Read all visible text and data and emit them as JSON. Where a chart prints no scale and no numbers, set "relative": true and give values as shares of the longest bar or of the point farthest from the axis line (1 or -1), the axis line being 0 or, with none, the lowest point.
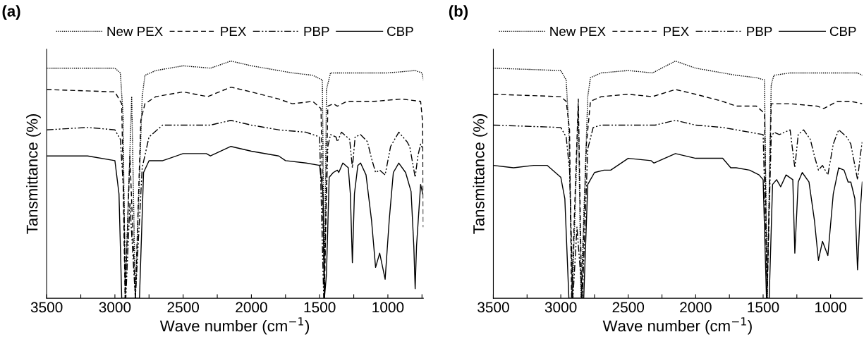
{
  "chart_data": [
    {
      "type": "line",
      "title": "(a)",
      "xlabel": "Wave number (cm$^{−1}$)",
      "ylabel": "Tansmittance (%)",
      "relative": true,
      "legend": "top",
      "xlim": [
        3500,
        740
      ],
      "xticks": [
        3500,
        {
          "value": 3250,
          "label": null
        },
        3000,
        {
          "value": 2750,
          "label": null
        },
        2500,
        {
          "value": 2250,
          "label": null
        },
        2000,
        {
          "value": 1750,
          "label": null
        },
        1500,
        {
          "value": 1250,
          "label": null
        },
        1000,
        {
          "value": 750,
          "label": null
        }
      ],
      "series": [
        {
          "name": "New PEX",
          "color": "#000000",
          "line_style": "dotted",
          "x": [
            3500,
            3000,
            2960,
            2940,
            2925,
            2877,
            2850,
            2800,
            2780,
            2700,
            2500,
            2300,
            2150,
            2000,
            1800,
            1700,
            1550,
            1480,
            1465,
            1450,
            1420,
            1300,
            1000,
            800,
            750,
            740
          ],
          "values": [
            0.97,
            0.97,
            0.95,
            0.77,
            0,
            0.85,
            0,
            0.85,
            0.94,
            0.96,
            0.98,
            0.97,
            1.0,
            0.98,
            0.96,
            0.95,
            0.94,
            0.92,
            0,
            0.88,
            0.95,
            0.95,
            0.95,
            0.96,
            0.95,
            0.92
          ]
        },
        {
          "name": "PEX",
          "color": "#000000",
          "line_style": "dashed",
          "x": [
            3500,
            3000,
            2950,
            2925,
            2890,
            2850,
            2810,
            2780,
            2700,
            2500,
            2320,
            2150,
            2000,
            1800,
            1700,
            1550,
            1490,
            1465,
            1440,
            1400,
            1370,
            1300,
            1100,
            900,
            760,
            745,
            740
          ],
          "values": [
            0.88,
            0.87,
            0.82,
            0,
            0.6,
            0,
            0.75,
            0.82,
            0.85,
            0.87,
            0.85,
            0.89,
            0.87,
            0.84,
            0.82,
            0.83,
            0.8,
            0,
            0.81,
            0.82,
            0.81,
            0.83,
            0.83,
            0.84,
            0.83,
            0.74,
            0.3
          ]
        },
        {
          "name": "PBP",
          "color": "#000000",
          "line_style": "dashdot",
          "x": [
            3500,
            3200,
            3000,
            2960,
            2935,
            2920,
            2890,
            2850,
            2800,
            2750,
            2650,
            2500,
            2300,
            2150,
            2000,
            1800,
            1600,
            1500,
            1470,
            1440,
            1420,
            1380,
            1370,
            1340,
            1280,
            1260,
            1240,
            1200,
            1150,
            1120,
            1090,
            1060,
            1020,
            980,
            920,
            860,
            840,
            800,
            780,
            760,
            745
          ],
          "values": [
            0.71,
            0.72,
            0.71,
            0.67,
            0.44,
            0,
            0.4,
            0,
            0.55,
            0.68,
            0.73,
            0.73,
            0.73,
            0.75,
            0.73,
            0.71,
            0.7,
            0.68,
            0,
            0.64,
            0.69,
            0.68,
            0.66,
            0.7,
            0.67,
            0.55,
            0.68,
            0.69,
            0.66,
            0.59,
            0.53,
            0.54,
            0.52,
            0.64,
            0.7,
            0.66,
            0.64,
            0.51,
            0.6,
            0.65,
            0.63
          ]
        },
        {
          "name": "CBP",
          "color": "#000000",
          "line_style": "solid",
          "x": [
            3500,
            3200,
            3000,
            2970,
            2950,
            2820,
            2790,
            2750,
            2650,
            2600,
            2500,
            2330,
            2300,
            2150,
            2000,
            1800,
            1750,
            1600,
            1500,
            1475,
            1465,
            1450,
            1430,
            1400,
            1370,
            1360,
            1330,
            1290,
            1275,
            1260,
            1245,
            1220,
            1200,
            1160,
            1120,
            1090,
            1060,
            1020,
            990,
            960,
            920,
            870,
            850,
            830,
            810,
            800,
            790,
            760,
            745
          ],
          "values": [
            0.6,
            0.6,
            0.58,
            0.44,
            0,
            0,
            0.53,
            0.58,
            0.58,
            0.59,
            0.61,
            0.61,
            0.6,
            0.64,
            0.62,
            0.6,
            0.58,
            0.57,
            0.56,
            0.44,
            0,
            0.1,
            0.51,
            0.53,
            0.54,
            0.53,
            0.57,
            0.55,
            0.44,
            0.15,
            0.44,
            0.56,
            0.57,
            0.52,
            0.33,
            0.13,
            0.19,
            0.08,
            0.33,
            0.53,
            0.57,
            0.53,
            0.49,
            0.45,
            0.22,
            0.04,
            0.22,
            0.48,
            0.44
          ]
        }
      ]
    },
    {
      "type": "line",
      "title": "(b)",
      "xlabel": "Wave number (cm$^{−1}$)",
      "ylabel": "Tansmittance (%)",
      "relative": true,
      "legend": "top",
      "xlim": [
        3500,
        765
      ],
      "xticks": [
        3500,
        {
          "value": 3250,
          "label": null
        },
        3000,
        {
          "value": 2750,
          "label": null
        },
        2500,
        {
          "value": 2250,
          "label": null
        },
        2000,
        {
          "value": 1750,
          "label": null
        },
        1500,
        {
          "value": 1250,
          "label": null
        },
        1000
      ],
      "series": [
        {
          "name": "New PEX",
          "color": "#000000",
          "line_style": "dotted",
          "x": [
            3500,
            3000,
            2960,
            2940,
            2915,
            2870,
            2850,
            2800,
            2780,
            2700,
            2500,
            2320,
            2150,
            2000,
            1800,
            1700,
            1550,
            1490,
            1470,
            1440,
            1420,
            1300,
            1000,
            800,
            765
          ],
          "values": [
            0.97,
            0.96,
            0.92,
            0.71,
            0,
            0.8,
            0,
            0.85,
            0.93,
            0.95,
            0.96,
            0.95,
            1.0,
            0.97,
            0.95,
            0.94,
            0.93,
            0.92,
            0,
            0.9,
            0.94,
            0.95,
            0.95,
            0.95,
            0.94
          ]
        },
        {
          "name": "PEX",
          "color": "#000000",
          "line_style": "dashed",
          "x": [
            3500,
            3000,
            2960,
            2935,
            2920,
            2870,
            2845,
            2810,
            2780,
            2700,
            2500,
            2320,
            2150,
            2000,
            1800,
            1700,
            1550,
            1490,
            1470,
            1440,
            1400,
            1300,
            1100,
            1050,
            950,
            850,
            765
          ],
          "values": [
            0.86,
            0.85,
            0.83,
            0.71,
            0,
            0.84,
            0,
            0.65,
            0.83,
            0.85,
            0.86,
            0.85,
            0.88,
            0.86,
            0.83,
            0.81,
            0.81,
            0.78,
            0,
            0.82,
            0.82,
            0.82,
            0.81,
            0.8,
            0.83,
            0.83,
            0.82
          ]
        },
        {
          "name": "PBP",
          "color": "#000000",
          "line_style": "dashdot",
          "x": [
            3500,
            3000,
            2960,
            2935,
            2910,
            2880,
            2840,
            2800,
            2760,
            2700,
            2500,
            2300,
            2150,
            2000,
            1800,
            1600,
            1500,
            1470,
            1440,
            1420,
            1380,
            1300,
            1265,
            1240,
            1200,
            1150,
            1120,
            1090,
            1060,
            1020,
            980,
            940,
            880,
            850,
            800,
            780,
            765
          ],
          "values": [
            0.73,
            0.72,
            0.68,
            0.54,
            0,
            0.3,
            0,
            0.63,
            0.72,
            0.73,
            0.73,
            0.73,
            0.75,
            0.73,
            0.72,
            0.7,
            0.69,
            0.05,
            0.68,
            0.7,
            0.69,
            0.71,
            0.55,
            0.69,
            0.71,
            0.67,
            0.6,
            0.54,
            0.56,
            0.52,
            0.65,
            0.71,
            0.68,
            0.65,
            0.5,
            0.6,
            0.66
          ]
        },
        {
          "name": "CBP",
          "color": "#000000",
          "line_style": "solid",
          "x": [
            3500,
            3350,
            3200,
            3100,
            3000,
            2970,
            2940,
            2830,
            2800,
            2750,
            2680,
            2630,
            2500,
            2330,
            2310,
            2150,
            2000,
            1800,
            1740,
            1700,
            1600,
            1530,
            1500,
            1475,
            1455,
            1430,
            1400,
            1370,
            1330,
            1280,
            1265,
            1240,
            1210,
            1160,
            1120,
            1090,
            1060,
            1020,
            980,
            940,
            900,
            870,
            850,
            820,
            800,
            780,
            765
          ],
          "values": [
            0.56,
            0.55,
            0.56,
            0.56,
            0.51,
            0.42,
            0,
            0,
            0.48,
            0.53,
            0.54,
            0.54,
            0.59,
            0.58,
            0.57,
            0.61,
            0.59,
            0.59,
            0.55,
            0.55,
            0.54,
            0.52,
            0.5,
            0,
            0,
            0.48,
            0.5,
            0.47,
            0.52,
            0.5,
            0.19,
            0.49,
            0.53,
            0.49,
            0.33,
            0.16,
            0.24,
            0.18,
            0.44,
            0.55,
            0.54,
            0.49,
            0.49,
            0.42,
            0.12,
            0.37,
            0.49
          ]
        }
      ]
    }
  ]
}
